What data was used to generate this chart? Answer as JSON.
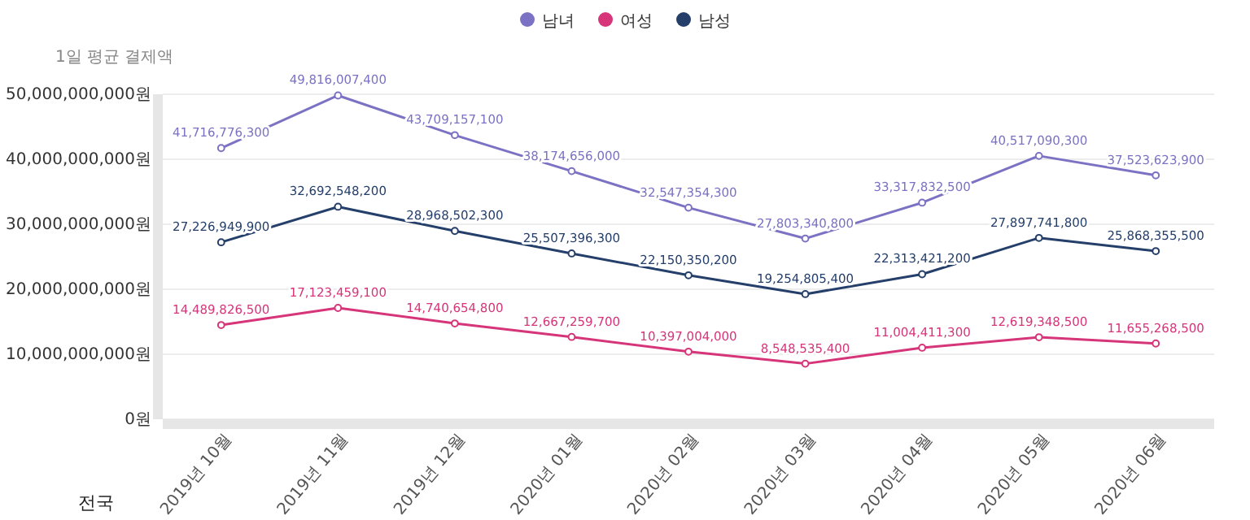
{
  "chart_data": {
    "type": "line",
    "ylabel": "1일 평균 결제액",
    "categories": [
      "2019년 10월",
      "2019년 11월",
      "2019년 12월",
      "2020년 01월",
      "2020년 02월",
      "2020년 03월",
      "2020년 04월",
      "2020년 05월",
      "2020년 06월"
    ],
    "series": [
      {
        "name": "남녀",
        "color": "#7b72c4",
        "values": [
          41716776300,
          49816007400,
          43709157100,
          38174656000,
          32547354300,
          27803340800,
          33317832500,
          40517090300,
          37523623900
        ],
        "value_labels": [
          "41,716,776,300",
          "49,816,007,400",
          "43,709,157,100",
          "38,174,656,000",
          "32,547,354,300",
          "27,803,340,800",
          "33,317,832,500",
          "40,517,090,300",
          "37,523,623,900"
        ]
      },
      {
        "name": "여성",
        "color": "#d6357a",
        "values": [
          14489826500,
          17123459100,
          14740654800,
          12667259700,
          10397004000,
          8548535400,
          11004411300,
          12619348500,
          11655268500
        ],
        "value_labels": [
          "14,489,826,500",
          "17,123,459,100",
          "14,740,654,800",
          "12,667,259,700",
          "10,397,004,000",
          "8,548,535,400",
          "11,004,411,300",
          "12,619,348,500",
          "11,655,268,500"
        ]
      },
      {
        "name": "남성",
        "color": "#253f6b",
        "values": [
          27226949900,
          32692548200,
          28968502300,
          25507396300,
          22150350200,
          19254805400,
          22313421200,
          27897741800,
          25868355500
        ],
        "value_labels": [
          "27,226,949,900",
          "32,692,548,200",
          "28,968,502,300",
          "25,507,396,300",
          "22,150,350,200",
          "19,254,805,400",
          "22,313,421,200",
          "27,897,741,800",
          "25,868,355,500"
        ]
      }
    ],
    "ylim": [
      0,
      50000000000
    ],
    "yticks": [
      {
        "value": 0,
        "label": "0원"
      },
      {
        "value": 10000000000,
        "label": "10,000,000,000원"
      },
      {
        "value": 20000000000,
        "label": "20,000,000,000원"
      },
      {
        "value": 30000000000,
        "label": "30,000,000,000원"
      },
      {
        "value": 40000000000,
        "label": "40,000,000,000원"
      },
      {
        "value": 50000000000,
        "label": "50,000,000,000원"
      }
    ],
    "grid": "y",
    "legend": "top",
    "marker": "circle",
    "line_style": "solid",
    "annotations": [
      "전국"
    ]
  }
}
